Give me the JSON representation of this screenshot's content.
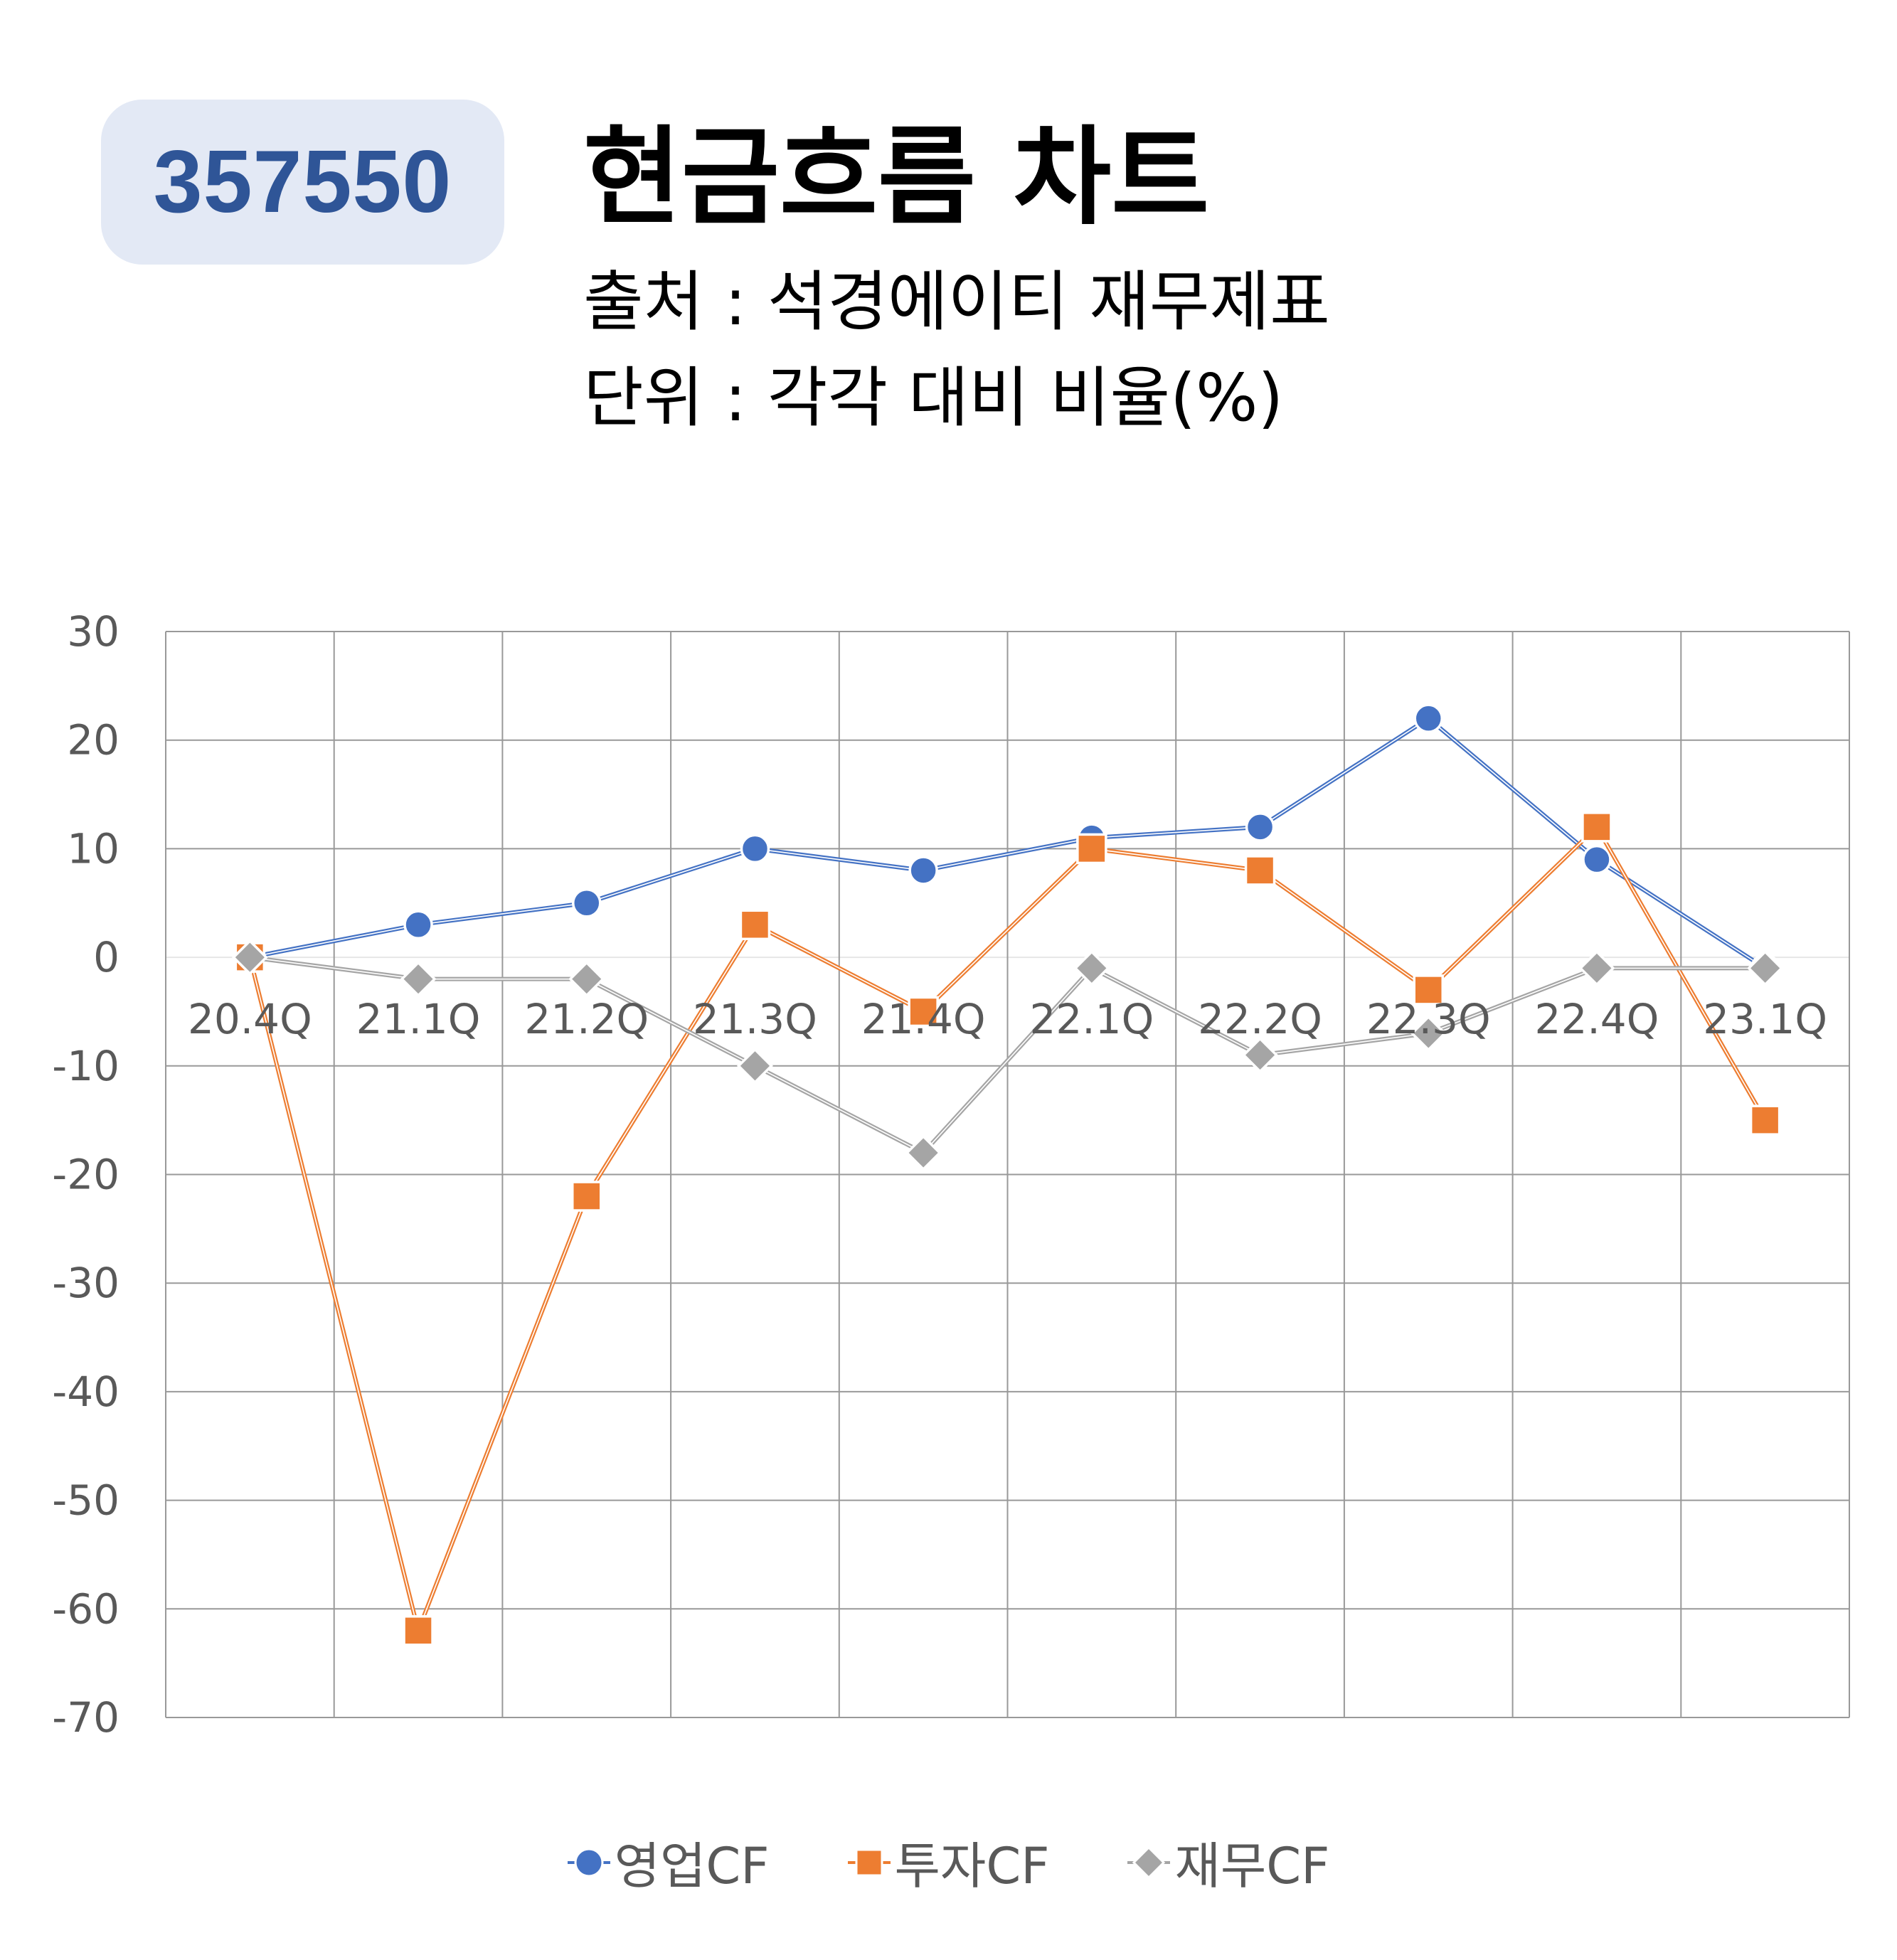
{
  "header": {
    "code": "357550",
    "title": "현금흐름 차트",
    "source": "출처 : 석경에이티 재무제표",
    "unit": "단위 : 각각 대비 비율(%)"
  },
  "colors": {
    "badge_bg": "#e3e9f5",
    "badge_text": "#2f5597",
    "operating": "#4472c4",
    "investing": "#ed7d31",
    "financing": "#a5a5a5",
    "grid": "#999999",
    "tick_text": "#595959"
  },
  "chart_data": {
    "type": "line",
    "categories": [
      "20.4Q",
      "21.1Q",
      "21.2Q",
      "21.3Q",
      "21.4Q",
      "22.1Q",
      "22.2Q",
      "22.3Q",
      "22.4Q",
      "23.1Q"
    ],
    "series": [
      {
        "name": "영업CF",
        "marker": "circle",
        "values": [
          0,
          3,
          5,
          10,
          8,
          11,
          12,
          22,
          9,
          -1
        ]
      },
      {
        "name": "투자CF",
        "marker": "square",
        "values": [
          0,
          -62,
          -22,
          3,
          -5,
          10,
          8,
          -3,
          12,
          -15
        ]
      },
      {
        "name": "재무CF",
        "marker": "diamond",
        "values": [
          0,
          -2,
          -2,
          -10,
          -18,
          -1,
          -9,
          -7,
          -1,
          -1
        ]
      }
    ],
    "ylim": [
      -70,
      30
    ],
    "yticks": [
      30,
      20,
      10,
      0,
      -10,
      -20,
      -30,
      -40,
      -50,
      -60,
      -70
    ],
    "grid": true,
    "legend_position": "bottom",
    "xlabel": "",
    "ylabel": ""
  }
}
